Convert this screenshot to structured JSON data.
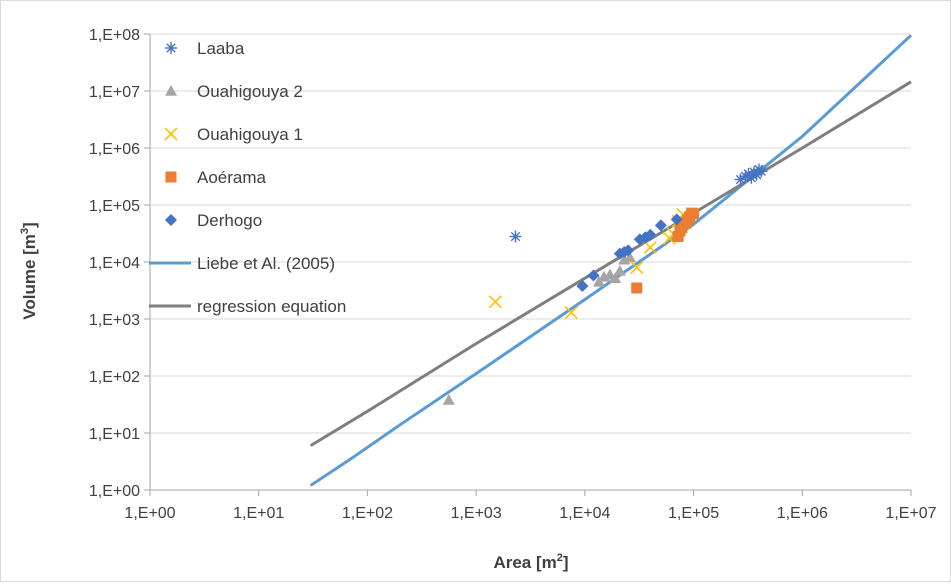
{
  "chart_data": {
    "type": "scatter",
    "xlabel": "Area [m",
    "xlabel_sup": "2",
    "xlabel_end": "]",
    "ylabel": "Volume [m",
    "ylabel_sup": "3",
    "ylabel_end": "]",
    "x_scale": "log",
    "y_scale": "log",
    "xlim": [
      1,
      10000000
    ],
    "ylim": [
      1,
      100000000
    ],
    "x_ticks": [
      1,
      10,
      100,
      1000,
      10000,
      100000,
      1000000,
      10000000
    ],
    "x_tick_labels": [
      "1,E+00",
      "1,E+01",
      "1,E+02",
      "1,E+03",
      "1,E+04",
      "1,E+05",
      "1,E+06",
      "1,E+07"
    ],
    "y_ticks": [
      1,
      10,
      100,
      1000,
      10000,
      100000,
      1000000,
      10000000,
      100000000
    ],
    "y_tick_labels": [
      "1,E+00",
      "1,E+01",
      "1,E+02",
      "1,E+03",
      "1,E+04",
      "1,E+05",
      "1,E+06",
      "1,E+07",
      "1,E+08"
    ],
    "grid": "horizontal",
    "legend_position": "top-left",
    "series": [
      {
        "name": "Laaba",
        "kind": "points",
        "marker": "asterisk",
        "color": "#4472C4",
        "points": [
          [
            2300,
            28000
          ],
          [
            270000,
            280000
          ],
          [
            300000,
            320000
          ],
          [
            320000,
            350000
          ],
          [
            340000,
            300000
          ],
          [
            360000,
            380000
          ],
          [
            380000,
            340000
          ],
          [
            400000,
            420000
          ],
          [
            420000,
            390000
          ]
        ]
      },
      {
        "name": "Ouahigouya 2",
        "kind": "points",
        "marker": "triangle",
        "color": "#A5A5A5",
        "points": [
          [
            560,
            38
          ],
          [
            13500,
            4500
          ],
          [
            15000,
            5500
          ],
          [
            17000,
            6000
          ],
          [
            19000,
            5200
          ],
          [
            21000,
            7000
          ],
          [
            23000,
            11000
          ],
          [
            26000,
            12000
          ]
        ]
      },
      {
        "name": "Ouahigouya 1",
        "kind": "points",
        "marker": "x",
        "color": "#FFC000",
        "points": [
          [
            1500,
            2000
          ],
          [
            7500,
            1300
          ],
          [
            30000,
            8000
          ],
          [
            40000,
            18000
          ],
          [
            60000,
            26000
          ],
          [
            65000,
            31000
          ],
          [
            72000,
            52000
          ],
          [
            80000,
            68000
          ]
        ]
      },
      {
        "name": "Aoérama",
        "kind": "points",
        "marker": "square",
        "color": "#ED7D31",
        "points": [
          [
            30000,
            3500
          ],
          [
            72000,
            28000
          ],
          [
            75000,
            35000
          ],
          [
            78000,
            40000
          ],
          [
            85000,
            48000
          ],
          [
            88000,
            55000
          ],
          [
            92000,
            62000
          ],
          [
            96000,
            72000
          ],
          [
            100000,
            70000
          ]
        ]
      },
      {
        "name": "Derhogo",
        "kind": "points",
        "marker": "diamond",
        "color": "#4472C4",
        "points": [
          [
            9500,
            3800
          ],
          [
            12000,
            5800
          ],
          [
            21000,
            14000
          ],
          [
            23000,
            15000
          ],
          [
            25000,
            16000
          ],
          [
            32000,
            25000
          ],
          [
            36000,
            27000
          ],
          [
            40000,
            30000
          ],
          [
            50000,
            44000
          ],
          [
            70000,
            56000
          ]
        ]
      },
      {
        "name": "Liebe et Al. (2005)",
        "kind": "line",
        "color": "#5B9BD5",
        "points": [
          [
            30,
            1.2
          ],
          [
            70,
            3.5
          ],
          [
            200,
            14
          ],
          [
            1000,
            110
          ],
          [
            10000,
            2200
          ],
          [
            100000,
            46000
          ],
          [
            1000000,
            1600000
          ],
          [
            10000000,
            95000000
          ]
        ]
      },
      {
        "name": "regression equation",
        "kind": "line",
        "color": "#7F7F7F",
        "points": [
          [
            30,
            6
          ],
          [
            100,
            24
          ],
          [
            1000,
            370
          ],
          [
            10000,
            5200
          ],
          [
            100000,
            72000
          ],
          [
            1000000,
            1000000
          ],
          [
            10000000,
            14500000
          ]
        ]
      }
    ]
  }
}
